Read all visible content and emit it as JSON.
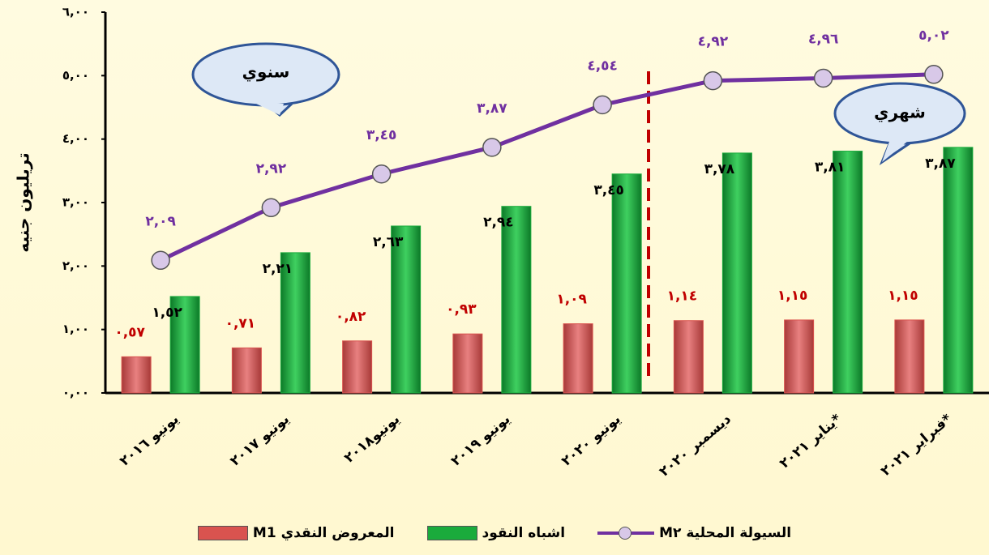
{
  "chart_data": {
    "type": "bar_line",
    "y_axis_label": "تريليون جنيه",
    "annotations": [
      "سنوي",
      "شهري"
    ],
    "categories": [
      "يونيو ٢٠١٦",
      "يونيو ٢٠١٧",
      "يونيو٢٠١٨",
      "يونيو ٢٠١٩",
      "يونيو ٢٠٢٠",
      "ديسمبر ٢٠٢٠",
      "يناير ٢٠٢١*",
      "فبراير ٢٠٢١*"
    ],
    "series": [
      {
        "name": "المعروض النقدي M1",
        "type": "bar",
        "color": "#d9534f",
        "values": [
          0.57,
          0.71,
          0.82,
          0.93,
          1.09,
          1.14,
          1.15,
          1.15
        ],
        "value_labels": [
          "٠,٥٧",
          "٠,٧١",
          "٠,٨٢",
          "٠,٩٣",
          "١,٠٩",
          "١,١٤",
          "١,١٥",
          "١,١٥"
        ],
        "label_color": "#c00000"
      },
      {
        "name": "اشباه النقود",
        "type": "bar",
        "color": "#1aab3c",
        "values": [
          1.52,
          2.21,
          2.63,
          2.94,
          3.45,
          3.78,
          3.81,
          3.87
        ],
        "value_labels": [
          "١,٥٢",
          "٢,٢١",
          "٢,٦٣",
          "٢,٩٤",
          "٣,٤٥",
          "٣,٧٨",
          "٣,٨١",
          "٣,٨٧"
        ],
        "label_color": "#000000"
      },
      {
        "name": "السيولة المحلية M٢",
        "type": "line",
        "color": "#7030a0",
        "values": [
          2.09,
          2.92,
          3.45,
          3.87,
          4.54,
          4.92,
          4.96,
          5.02
        ],
        "value_labels": [
          "٢,٠٩",
          "٢,٩٢",
          "٣,٤٥",
          "٣,٨٧",
          "٤,٥٤",
          "٤,٩٢",
          "٤,٩٦",
          "٥,٠٢"
        ],
        "label_color": "#7030a0"
      }
    ],
    "ylim": [
      0,
      6
    ],
    "yticks": [
      {
        "value": 0,
        "label": "٠,٠٠"
      },
      {
        "value": 1,
        "label": "١,٠٠"
      },
      {
        "value": 2,
        "label": "٢,٠٠"
      },
      {
        "value": 3,
        "label": "٣,٠٠"
      },
      {
        "value": 4,
        "label": "٤,٠٠"
      },
      {
        "value": 5,
        "label": "٥,٠٠"
      },
      {
        "value": 6,
        "label": "٦,٠٠"
      }
    ],
    "grid": false
  }
}
